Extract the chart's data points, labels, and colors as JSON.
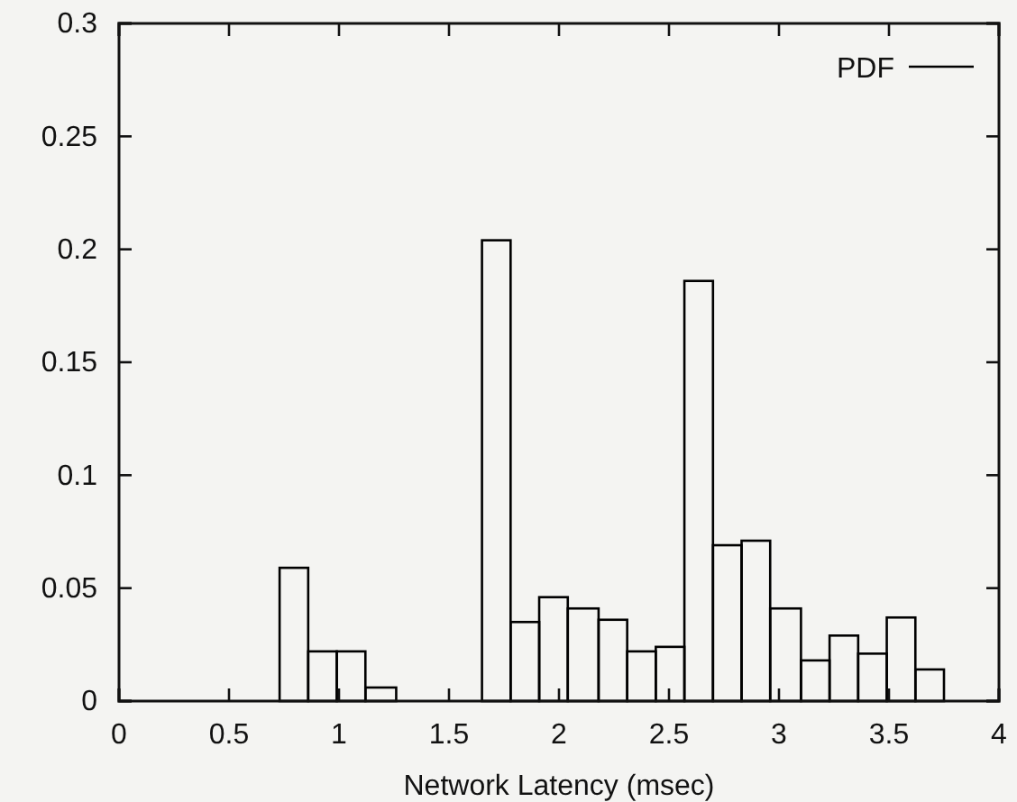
{
  "chart_data": {
    "type": "histogram",
    "xlabel": "Network Latency (msec)",
    "bins": [
      0.73,
      0.86,
      0.99,
      1.12,
      1.26,
      1.65,
      1.78,
      1.91,
      2.04,
      2.18,
      2.31,
      2.44,
      2.57,
      2.7,
      2.83,
      2.96,
      3.1,
      3.23,
      3.36,
      3.49,
      3.62,
      3.75
    ],
    "series": [
      {
        "name": "PDF",
        "color": "#000000",
        "values": [
          0.059,
          0.022,
          0.022,
          0.006,
          0,
          0.204,
          0.035,
          0.046,
          0.041,
          0.036,
          0.022,
          0.024,
          0.186,
          0.069,
          0.071,
          0.041,
          0.018,
          0.029,
          0.021,
          0.037,
          0.014
        ]
      }
    ],
    "xlim": [
      0,
      4
    ],
    "xticks": [
      0,
      0.5,
      1,
      1.5,
      2,
      2.5,
      3,
      3.5,
      4
    ],
    "ylim": [
      0,
      0.3
    ],
    "yticks": [
      0,
      0.05,
      0.1,
      0.15,
      0.2,
      0.25,
      0.3
    ],
    "legend": "top right",
    "grid": false
  }
}
